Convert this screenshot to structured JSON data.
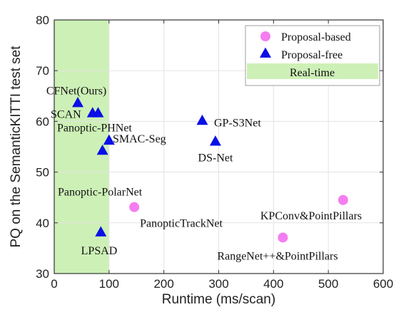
{
  "chart_data": {
    "type": "scatter",
    "xlabel": "Runtime (ms/scan)",
    "ylabel": "PQ on the SemanticKITTI test set",
    "xlim": [
      0,
      600
    ],
    "ylim": [
      30,
      80
    ],
    "xticks": [
      0,
      100,
      200,
      300,
      400,
      500,
      600
    ],
    "yticks": [
      30,
      40,
      50,
      60,
      70,
      80
    ],
    "grid": true,
    "legend_position": "top-right",
    "shaded_region": {
      "x": [
        0,
        100
      ],
      "label": "Real-time",
      "color": "#cdf0b7"
    },
    "series": [
      {
        "name": "Proposal-based",
        "marker": "circle",
        "color": "#f47ef0",
        "points": [
          {
            "label": "PanopticTrackNet",
            "x": 146,
            "y": 43.1
          },
          {
            "label": "RangeNet++&PointPillars",
            "x": 417,
            "y": 37.1
          },
          {
            "label": "KPConv&PointPillars",
            "x": 527,
            "y": 44.5
          }
        ]
      },
      {
        "name": "Proposal-free",
        "marker": "triangle",
        "color": "#0a10e6",
        "points": [
          {
            "label": "CFNet(Ours)",
            "x": 43,
            "y": 63.5,
            "label_color": "#e8281e"
          },
          {
            "label": "SCAN",
            "x": 70,
            "y": 61.5
          },
          {
            "label": "Panoptic-PHNet",
            "x": 80,
            "y": 61.5
          },
          {
            "label": "SMAC-Seg",
            "x": 100,
            "y": 56.1
          },
          {
            "label": "Panoptic-PolarNet",
            "x": 88,
            "y": 54.1
          },
          {
            "label": "GP-S3Net",
            "x": 270,
            "y": 60.0
          },
          {
            "label": "DS-Net",
            "x": 294,
            "y": 55.9
          },
          {
            "label": "LPSAD",
            "x": 85,
            "y": 38.0
          }
        ]
      }
    ]
  }
}
